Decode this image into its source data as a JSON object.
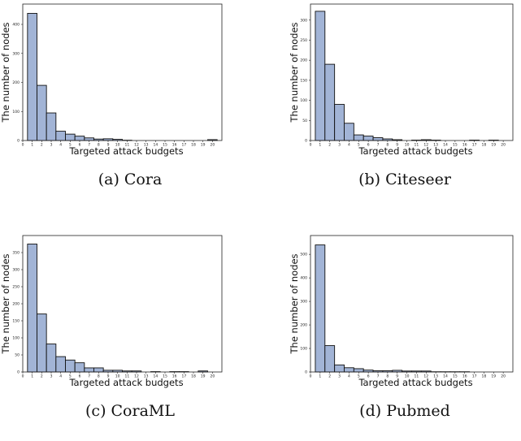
{
  "style": {
    "bar_color": "#a2b4d6",
    "edge_color": "#111111"
  },
  "chart_data": [
    {
      "type": "bar",
      "caption": "(a)  Cora",
      "xlabel": "Targeted attack budgets",
      "ylabel": "The number of nodes",
      "x_ticks": [
        "0",
        "1",
        "2",
        "3",
        "4",
        "5",
        "6",
        "7",
        "8",
        "9",
        "10",
        "11",
        "12",
        "13",
        "14",
        "15",
        "16",
        "17",
        "18",
        "19",
        "20"
      ],
      "y_ticks": [
        "0",
        "100",
        "200",
        "300",
        "400"
      ],
      "xlim": [
        0,
        21
      ],
      "ylim": [
        0,
        470
      ],
      "bins": [
        1,
        2,
        3,
        4,
        5,
        6,
        7,
        8,
        9,
        10,
        11,
        12,
        13,
        14,
        15,
        16,
        17,
        18,
        19,
        20
      ],
      "values": [
        438,
        190,
        95,
        32,
        22,
        15,
        9,
        5,
        6,
        4,
        1,
        0,
        0,
        0,
        0,
        0,
        0,
        0,
        0,
        3
      ]
    },
    {
      "type": "bar",
      "caption": "(b)  Citeseer",
      "xlabel": "Targeted attack budgets",
      "ylabel": "The number of nodes",
      "x_ticks": [
        "0",
        "1",
        "2",
        "3",
        "4",
        "5",
        "6",
        "7",
        "8",
        "9",
        "10",
        "11",
        "12",
        "13",
        "14",
        "15",
        "16",
        "17",
        "18",
        "19",
        "20"
      ],
      "y_ticks": [
        "0",
        "50",
        "100",
        "150",
        "200",
        "250",
        "300"
      ],
      "xlim": [
        0,
        21
      ],
      "ylim": [
        0,
        340
      ],
      "bins": [
        1,
        2,
        3,
        4,
        5,
        6,
        7,
        8,
        9,
        10,
        11,
        12,
        13,
        14,
        15,
        16,
        17,
        18,
        19,
        20
      ],
      "values": [
        322,
        190,
        90,
        43,
        14,
        11,
        7,
        4,
        2,
        0,
        1,
        2,
        1,
        0,
        0,
        0,
        1,
        0,
        1,
        0
      ]
    },
    {
      "type": "bar",
      "caption": "(c)  CoraML",
      "xlabel": "Targeted attack budgets",
      "ylabel": "The number of nodes",
      "x_ticks": [
        "0",
        "1",
        "2",
        "3",
        "4",
        "5",
        "6",
        "7",
        "8",
        "9",
        "10",
        "11",
        "12",
        "13",
        "14",
        "15",
        "16",
        "17",
        "18",
        "19",
        "20"
      ],
      "y_ticks": [
        "0",
        "50",
        "100",
        "150",
        "200",
        "250",
        "300",
        "350"
      ],
      "xlim": [
        0,
        21
      ],
      "ylim": [
        0,
        400
      ],
      "bins": [
        1,
        2,
        3,
        4,
        5,
        6,
        7,
        8,
        9,
        10,
        11,
        12,
        13,
        14,
        15,
        16,
        17,
        18,
        19,
        20
      ],
      "values": [
        375,
        170,
        82,
        45,
        35,
        27,
        12,
        12,
        5,
        5,
        3,
        3,
        0,
        1,
        0,
        1,
        1,
        0,
        3,
        0
      ]
    },
    {
      "type": "bar",
      "caption": "(d)  Pubmed",
      "xlabel": "Targeted attack budgets",
      "ylabel": "The number of nodes",
      "x_ticks": [
        "0",
        "1",
        "2",
        "3",
        "4",
        "5",
        "6",
        "7",
        "8",
        "9",
        "10",
        "11",
        "12",
        "13",
        "14",
        "15",
        "16",
        "17",
        "18",
        "19",
        "20"
      ],
      "y_ticks": [
        "0",
        "100",
        "200",
        "300",
        "400",
        "500"
      ],
      "xlim": [
        0,
        21
      ],
      "ylim": [
        0,
        580
      ],
      "bins": [
        1,
        2,
        3,
        4,
        5,
        6,
        7,
        8,
        9,
        10,
        11,
        12,
        13,
        14,
        15,
        16,
        17,
        18,
        19,
        20
      ],
      "values": [
        540,
        112,
        30,
        18,
        14,
        8,
        5,
        5,
        7,
        4,
        4,
        4,
        1,
        1,
        1,
        1,
        0,
        0,
        0,
        0
      ]
    }
  ]
}
